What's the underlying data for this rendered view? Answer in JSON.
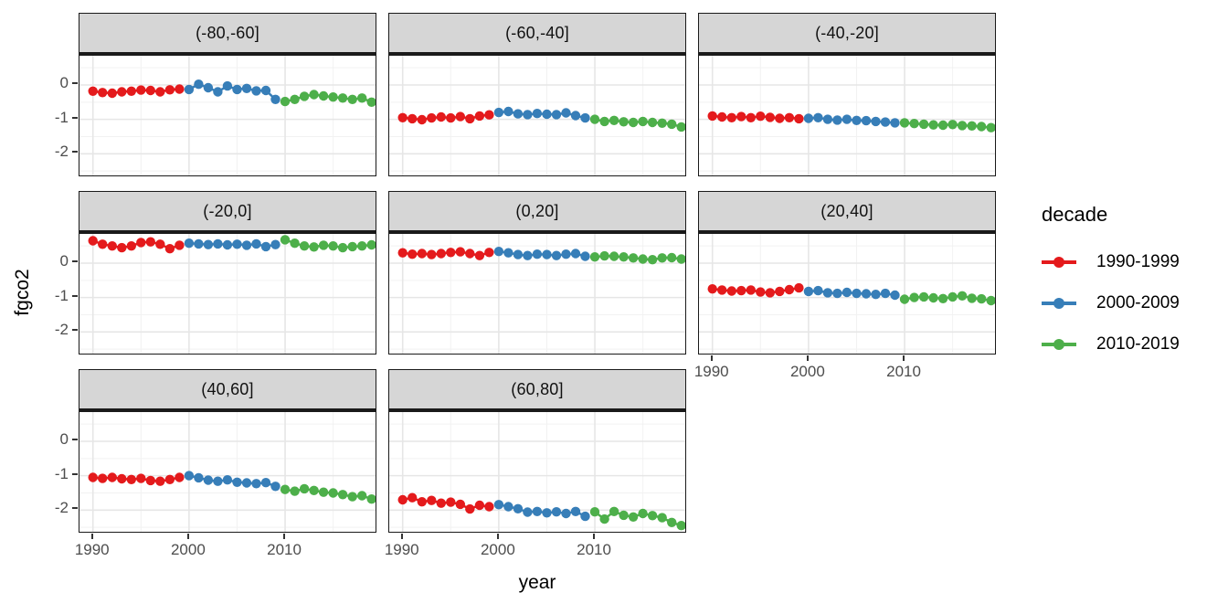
{
  "chart_data": {
    "type": "line",
    "title": "",
    "xlabel": "year",
    "ylabel": "fgco2",
    "legend_title": "decade",
    "legend_position": "right",
    "grid": true,
    "x": [
      1990,
      1991,
      1992,
      1993,
      1994,
      1995,
      1996,
      1997,
      1998,
      1999,
      2000,
      2001,
      2002,
      2003,
      2004,
      2005,
      2006,
      2007,
      2008,
      2009,
      2010,
      2011,
      2012,
      2013,
      2014,
      2015,
      2016,
      2017,
      2018,
      2019
    ],
    "x_ticks": [
      1990,
      2000,
      2010
    ],
    "y_ticks": [
      0,
      -1,
      -2
    ],
    "xlim": [
      1988.6,
      2019.6
    ],
    "ylim": [
      -2.71,
      0.85
    ],
    "series": [
      {
        "name": "1990-1999",
        "color": "#E41A1C",
        "year_range": [
          1990,
          1999
        ]
      },
      {
        "name": "2000-2009",
        "color": "#377EB8",
        "year_range": [
          2000,
          2009
        ]
      },
      {
        "name": "2010-2019",
        "color": "#4DAF4A",
        "year_range": [
          2010,
          2019
        ]
      }
    ],
    "facets": [
      {
        "label": "(-80,-60]",
        "values": [
          -0.18,
          -0.22,
          -0.24,
          -0.2,
          -0.18,
          -0.15,
          -0.16,
          -0.2,
          -0.14,
          -0.12,
          -0.13,
          0.02,
          -0.08,
          -0.2,
          -0.03,
          -0.13,
          -0.1,
          -0.17,
          -0.16,
          -0.42,
          -0.48,
          -0.42,
          -0.33,
          -0.28,
          -0.32,
          -0.35,
          -0.38,
          -0.42,
          -0.38,
          -0.5
        ]
      },
      {
        "label": "(-60,-40]",
        "values": [
          -0.95,
          -0.98,
          -1.01,
          -0.96,
          -0.93,
          -0.96,
          -0.92,
          -0.98,
          -0.9,
          -0.87,
          -0.8,
          -0.77,
          -0.84,
          -0.86,
          -0.83,
          -0.85,
          -0.86,
          -0.81,
          -0.89,
          -0.96,
          -1.0,
          -1.06,
          -1.03,
          -1.07,
          -1.09,
          -1.06,
          -1.09,
          -1.11,
          -1.14,
          -1.22
        ]
      },
      {
        "label": "(-40,-20]",
        "values": [
          -0.9,
          -0.93,
          -0.95,
          -0.92,
          -0.95,
          -0.91,
          -0.94,
          -0.97,
          -0.95,
          -0.98,
          -0.97,
          -0.95,
          -1.0,
          -1.02,
          -1.0,
          -1.03,
          -1.04,
          -1.06,
          -1.08,
          -1.1,
          -1.1,
          -1.12,
          -1.14,
          -1.16,
          -1.17,
          -1.15,
          -1.18,
          -1.19,
          -1.21,
          -1.24
        ]
      },
      {
        "label": "(-20,0]",
        "values": [
          0.65,
          0.55,
          0.5,
          0.45,
          0.5,
          0.6,
          0.62,
          0.55,
          0.42,
          0.52,
          0.58,
          0.56,
          0.54,
          0.56,
          0.53,
          0.55,
          0.52,
          0.56,
          0.48,
          0.54,
          0.68,
          0.58,
          0.5,
          0.47,
          0.52,
          0.5,
          0.45,
          0.48,
          0.5,
          0.53
        ]
      },
      {
        "label": "(0,20]",
        "values": [
          0.3,
          0.26,
          0.28,
          0.25,
          0.28,
          0.31,
          0.33,
          0.28,
          0.22,
          0.31,
          0.34,
          0.3,
          0.25,
          0.22,
          0.26,
          0.25,
          0.22,
          0.26,
          0.28,
          0.2,
          0.18,
          0.21,
          0.2,
          0.18,
          0.15,
          0.12,
          0.1,
          0.15,
          0.16,
          0.12
        ]
      },
      {
        "label": "(20,40]",
        "values": [
          -0.75,
          -0.78,
          -0.81,
          -0.8,
          -0.78,
          -0.84,
          -0.86,
          -0.82,
          -0.77,
          -0.72,
          -0.82,
          -0.8,
          -0.86,
          -0.88,
          -0.85,
          -0.88,
          -0.89,
          -0.91,
          -0.88,
          -0.93,
          -1.05,
          -1.0,
          -0.98,
          -1.01,
          -1.03,
          -0.98,
          -0.95,
          -1.02,
          -1.04,
          -1.09
        ]
      },
      {
        "label": "(40,60]",
        "values": [
          -1.05,
          -1.08,
          -1.05,
          -1.09,
          -1.11,
          -1.08,
          -1.14,
          -1.16,
          -1.11,
          -1.05,
          -1.0,
          -1.06,
          -1.13,
          -1.16,
          -1.12,
          -1.19,
          -1.21,
          -1.23,
          -1.2,
          -1.31,
          -1.4,
          -1.45,
          -1.38,
          -1.43,
          -1.48,
          -1.5,
          -1.55,
          -1.61,
          -1.58,
          -1.68
        ]
      },
      {
        "label": "(60,80]",
        "values": [
          -1.7,
          -1.64,
          -1.76,
          -1.72,
          -1.8,
          -1.77,
          -1.83,
          -1.97,
          -1.86,
          -1.9,
          -1.84,
          -1.9,
          -1.96,
          -2.06,
          -2.04,
          -2.08,
          -2.05,
          -2.1,
          -2.04,
          -2.18,
          -2.05,
          -2.26,
          -2.04,
          -2.15,
          -2.2,
          -2.1,
          -2.16,
          -2.22,
          -2.36,
          -2.45
        ]
      }
    ]
  },
  "style_colors": {
    "strip_bg": "#D6D6D6",
    "panel_border": "#1A1A1A",
    "grid_major": "#E6E6E6",
    "grid_minor": "#F2F2F2",
    "tick_text": "#4D4D4D"
  }
}
